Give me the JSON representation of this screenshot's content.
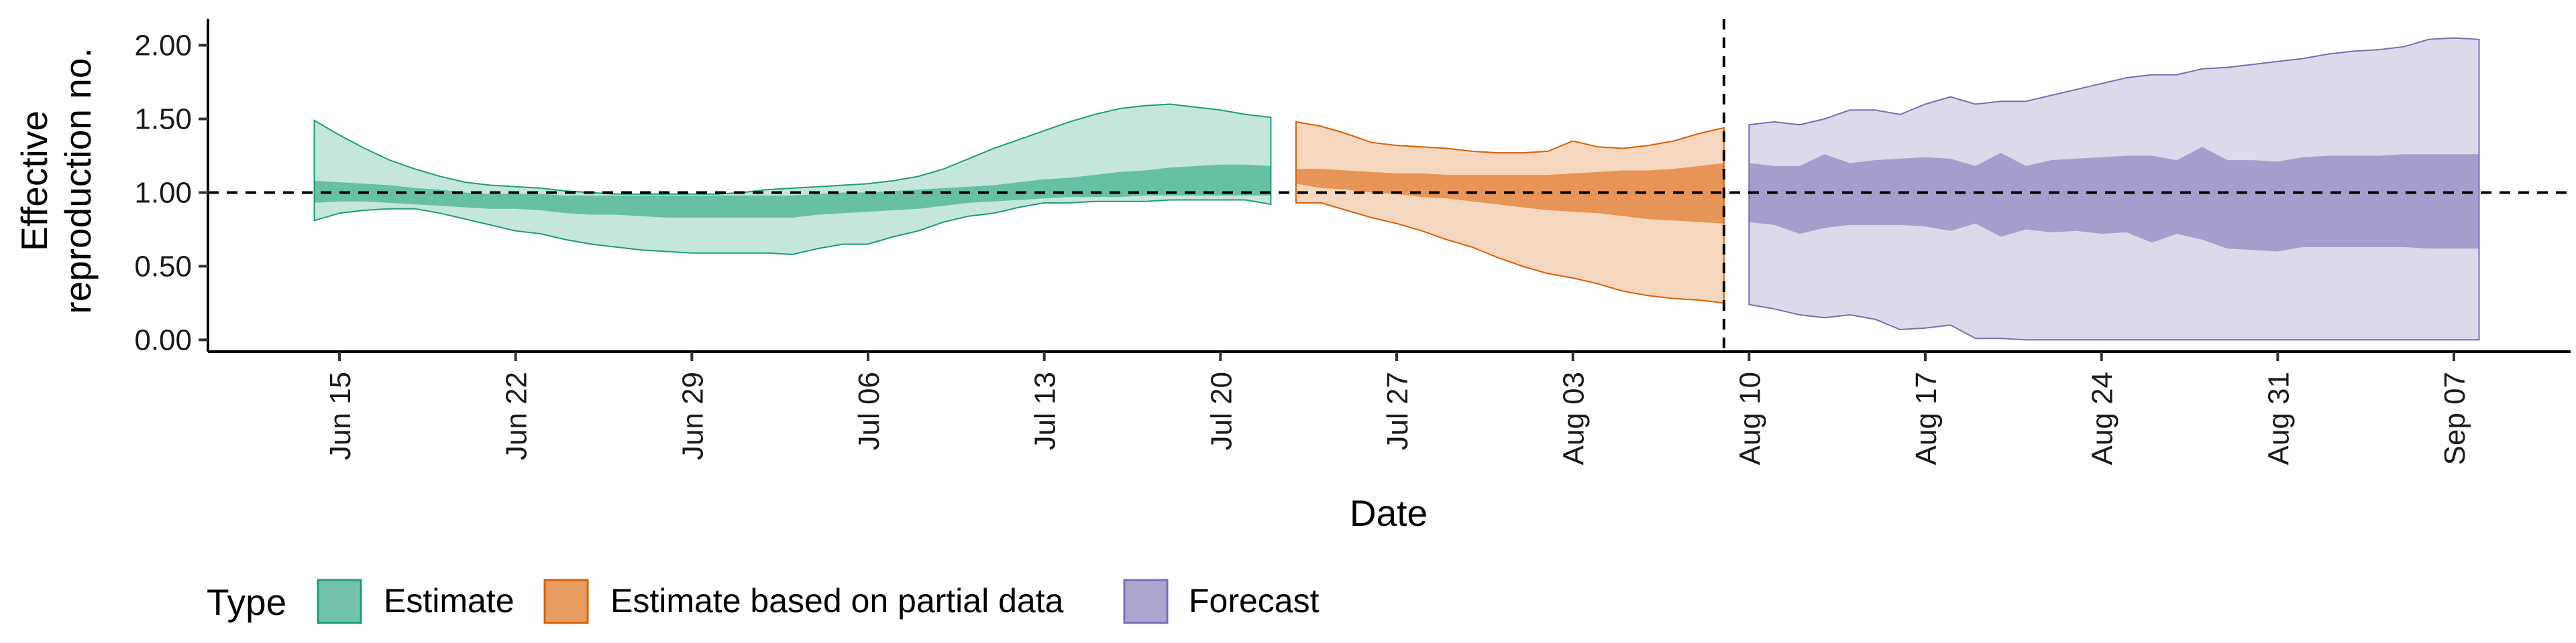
{
  "chart_data": {
    "type": "area",
    "xlabel": "Date",
    "ylabel_lines": [
      "Effective",
      "reproduction no."
    ],
    "ylim": [
      -0.08,
      2.18
    ],
    "y_ticks": [
      0.0,
      0.5,
      1.0,
      1.5,
      2.0
    ],
    "y_tick_labels": [
      "0.00",
      "0.50",
      "1.00",
      "1.50",
      "2.00"
    ],
    "x_tick_labels": [
      "Jun 15",
      "Jun 22",
      "Jun 29",
      "Jul 06",
      "Jul 13",
      "Jul 20",
      "Jul 27",
      "Aug 03",
      "Aug 10",
      "Aug 17",
      "Aug 24",
      "Aug 31",
      "Sep 07"
    ],
    "reference_line_y": 1.0,
    "vertical_line_date": "Aug 09",
    "legend_title": "Type",
    "legend": [
      {
        "label": "Estimate",
        "color": "#1b9e77"
      },
      {
        "label": "Estimate based on partial data",
        "color": "#d95f02"
      },
      {
        "label": "Forecast",
        "color": "#7570b3"
      }
    ],
    "series": [
      {
        "name": "Estimate",
        "color": "#1b9e77",
        "x": [
          "Jun 14",
          "Jun 15",
          "Jun 16",
          "Jun 17",
          "Jun 18",
          "Jun 19",
          "Jun 20",
          "Jun 21",
          "Jun 22",
          "Jun 23",
          "Jun 24",
          "Jun 25",
          "Jun 26",
          "Jun 27",
          "Jun 28",
          "Jun 29",
          "Jun 30",
          "Jul 01",
          "Jul 02",
          "Jul 03",
          "Jul 04",
          "Jul 05",
          "Jul 06",
          "Jul 07",
          "Jul 08",
          "Jul 09",
          "Jul 10",
          "Jul 11",
          "Jul 12",
          "Jul 13",
          "Jul 14",
          "Jul 15",
          "Jul 16",
          "Jul 17",
          "Jul 18",
          "Jul 19",
          "Jul 20",
          "Jul 21",
          "Jul 22"
        ],
        "lower90": [
          0.81,
          0.86,
          0.88,
          0.89,
          0.89,
          0.86,
          0.82,
          0.78,
          0.74,
          0.72,
          0.68,
          0.65,
          0.63,
          0.61,
          0.6,
          0.59,
          0.59,
          0.59,
          0.59,
          0.58,
          0.62,
          0.65,
          0.65,
          0.7,
          0.74,
          0.8,
          0.84,
          0.86,
          0.9,
          0.93,
          0.93,
          0.94,
          0.94,
          0.94,
          0.95,
          0.95,
          0.95,
          0.95,
          0.92
        ],
        "lower50": [
          0.93,
          0.94,
          0.94,
          0.93,
          0.92,
          0.91,
          0.9,
          0.89,
          0.89,
          0.88,
          0.86,
          0.85,
          0.85,
          0.84,
          0.83,
          0.83,
          0.83,
          0.83,
          0.83,
          0.83,
          0.85,
          0.86,
          0.87,
          0.88,
          0.89,
          0.91,
          0.93,
          0.94,
          0.95,
          0.96,
          0.97,
          0.97,
          0.97,
          0.98,
          0.98,
          0.98,
          0.98,
          0.98,
          0.98
        ],
        "upper50": [
          1.08,
          1.07,
          1.06,
          1.05,
          1.03,
          1.02,
          1.0,
          0.99,
          0.99,
          0.99,
          0.98,
          0.98,
          0.98,
          0.98,
          0.98,
          0.98,
          0.98,
          0.98,
          0.98,
          0.98,
          0.99,
          1.0,
          1.0,
          1.01,
          1.02,
          1.03,
          1.04,
          1.05,
          1.07,
          1.09,
          1.1,
          1.12,
          1.14,
          1.15,
          1.17,
          1.18,
          1.19,
          1.19,
          1.18
        ],
        "upper90": [
          1.49,
          1.39,
          1.3,
          1.22,
          1.16,
          1.11,
          1.07,
          1.05,
          1.04,
          1.03,
          1.01,
          1.0,
          0.99,
          0.99,
          0.99,
          0.99,
          0.99,
          1.0,
          1.02,
          1.03,
          1.04,
          1.05,
          1.06,
          1.08,
          1.11,
          1.16,
          1.23,
          1.3,
          1.36,
          1.42,
          1.48,
          1.53,
          1.57,
          1.59,
          1.6,
          1.58,
          1.56,
          1.53,
          1.51
        ]
      },
      {
        "name": "Estimate based on partial data",
        "color": "#d95f02",
        "x": [
          "Jul 23",
          "Jul 24",
          "Jul 25",
          "Jul 26",
          "Jul 27",
          "Jul 28",
          "Jul 29",
          "Jul 30",
          "Jul 31",
          "Aug 01",
          "Aug 02",
          "Aug 03",
          "Aug 04",
          "Aug 05",
          "Aug 06",
          "Aug 07",
          "Aug 08",
          "Aug 09"
        ],
        "lower90": [
          0.93,
          0.93,
          0.88,
          0.83,
          0.79,
          0.74,
          0.68,
          0.63,
          0.56,
          0.5,
          0.45,
          0.42,
          0.38,
          0.33,
          0.3,
          0.28,
          0.27,
          0.25
        ],
        "lower50": [
          1.06,
          1.03,
          1.02,
          1.0,
          0.99,
          0.97,
          0.96,
          0.94,
          0.92,
          0.9,
          0.88,
          0.87,
          0.86,
          0.84,
          0.82,
          0.81,
          0.8,
          0.79
        ],
        "upper50": [
          1.16,
          1.16,
          1.15,
          1.14,
          1.13,
          1.13,
          1.12,
          1.12,
          1.12,
          1.12,
          1.12,
          1.13,
          1.14,
          1.15,
          1.15,
          1.16,
          1.18,
          1.2
        ],
        "upper90": [
          1.48,
          1.45,
          1.4,
          1.34,
          1.32,
          1.31,
          1.3,
          1.28,
          1.27,
          1.27,
          1.28,
          1.35,
          1.31,
          1.3,
          1.32,
          1.35,
          1.4,
          1.44
        ]
      },
      {
        "name": "Forecast",
        "color": "#7570b3",
        "x": [
          "Aug 10",
          "Aug 11",
          "Aug 12",
          "Aug 13",
          "Aug 14",
          "Aug 15",
          "Aug 16",
          "Aug 17",
          "Aug 18",
          "Aug 19",
          "Aug 20",
          "Aug 21",
          "Aug 22",
          "Aug 23",
          "Aug 24",
          "Aug 25",
          "Aug 26",
          "Aug 27",
          "Aug 28",
          "Aug 29",
          "Aug 30",
          "Aug 31",
          "Sep 01",
          "Sep 02",
          "Sep 03",
          "Sep 04",
          "Sep 05",
          "Sep 06",
          "Sep 07",
          "Sep 08"
        ],
        "lower90": [
          0.24,
          0.21,
          0.17,
          0.15,
          0.17,
          0.14,
          0.07,
          0.08,
          0.1,
          0.01,
          0.01,
          0.0,
          0.0,
          0.0,
          0.0,
          0.0,
          0.0,
          0.0,
          0.0,
          0.0,
          0.0,
          0.0,
          0.0,
          0.0,
          0.0,
          0.0,
          0.0,
          0.0,
          0.0,
          0.0
        ],
        "lower50": [
          0.8,
          0.78,
          0.72,
          0.76,
          0.78,
          0.78,
          0.78,
          0.77,
          0.74,
          0.79,
          0.7,
          0.75,
          0.73,
          0.74,
          0.72,
          0.73,
          0.66,
          0.72,
          0.68,
          0.62,
          0.61,
          0.6,
          0.63,
          0.63,
          0.63,
          0.63,
          0.63,
          0.62,
          0.62,
          0.62
        ],
        "upper50": [
          1.2,
          1.18,
          1.18,
          1.26,
          1.2,
          1.22,
          1.23,
          1.24,
          1.23,
          1.18,
          1.27,
          1.18,
          1.22,
          1.23,
          1.24,
          1.25,
          1.25,
          1.22,
          1.31,
          1.22,
          1.22,
          1.21,
          1.24,
          1.25,
          1.25,
          1.25,
          1.26,
          1.26,
          1.26,
          1.26
        ],
        "upper90": [
          1.46,
          1.48,
          1.46,
          1.5,
          1.56,
          1.56,
          1.53,
          1.6,
          1.65,
          1.6,
          1.62,
          1.62,
          1.66,
          1.7,
          1.74,
          1.78,
          1.8,
          1.8,
          1.84,
          1.85,
          1.87,
          1.89,
          1.91,
          1.94,
          1.96,
          1.97,
          1.99,
          2.04,
          2.05,
          2.04
        ]
      }
    ]
  }
}
